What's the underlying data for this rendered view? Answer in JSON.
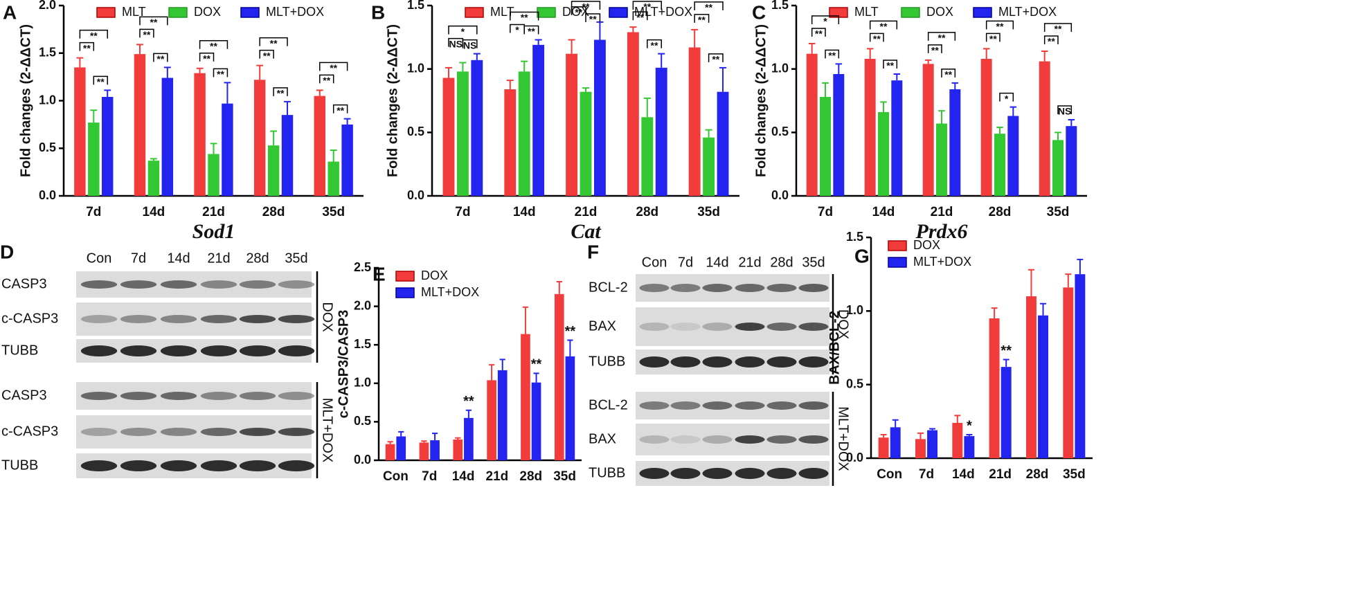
{
  "chart_data": [
    {
      "type": "bar",
      "panel": "A",
      "y_label": "Fold changes (2-ΔΔCT)",
      "x_label": "Sod1",
      "categories": [
        "7d",
        "14d",
        "21d",
        "28d",
        "35d"
      ],
      "legend": "top",
      "series": [
        {
          "name": "MLT",
          "color": "#f23c3c",
          "values": [
            1.35,
            1.49,
            1.29,
            1.22,
            1.05
          ],
          "errors": [
            0.1,
            0.1,
            0.05,
            0.15,
            0.06
          ]
        },
        {
          "name": "DOX",
          "color": "#33c833",
          "values": [
            0.77,
            0.37,
            0.44,
            0.53,
            0.36
          ],
          "errors": [
            0.13,
            0.02,
            0.11,
            0.15,
            0.12
          ]
        },
        {
          "name": "MLT+DOX",
          "color": "#2424f0",
          "values": [
            1.04,
            1.24,
            0.97,
            0.85,
            0.75
          ],
          "errors": [
            0.07,
            0.11,
            0.22,
            0.14,
            0.06
          ]
        }
      ],
      "annotations": [
        [
          "**",
          "**",
          "**"
        ],
        [
          "**",
          "**",
          "**"
        ],
        [
          "**",
          "**",
          "**"
        ],
        [
          "**",
          "**",
          "**"
        ],
        [
          "**",
          "**",
          "**"
        ]
      ],
      "ylim": [
        0,
        2
      ],
      "yticks": [
        {
          "value": 0,
          "label": "0.0"
        },
        {
          "value": 0.5,
          "label": "0.5"
        },
        {
          "value": 1,
          "label": "1.0"
        },
        {
          "value": 1.5,
          "label": "1.5"
        },
        {
          "value": 2,
          "label": "2.0"
        }
      ]
    },
    {
      "type": "bar",
      "panel": "B",
      "y_label": "Fold changes (2-ΔΔCT)",
      "x_label": "Cat",
      "categories": [
        "7d",
        "14d",
        "21d",
        "28d",
        "35d"
      ],
      "legend": "top",
      "series": [
        {
          "name": "MLT",
          "color": "#f23c3c",
          "values": [
            0.93,
            0.84,
            1.12,
            1.29,
            1.17
          ],
          "errors": [
            0.08,
            0.07,
            0.11,
            0.04,
            0.14
          ]
        },
        {
          "name": "DOX",
          "color": "#33c833",
          "values": [
            0.98,
            0.98,
            0.82,
            0.62,
            0.46
          ],
          "errors": [
            0.07,
            0.08,
            0.03,
            0.15,
            0.06
          ]
        },
        {
          "name": "MLT+DOX",
          "color": "#2424f0",
          "values": [
            1.07,
            1.19,
            1.23,
            1.01,
            0.82
          ],
          "errors": [
            0.05,
            0.04,
            0.14,
            0.11,
            0.19
          ]
        }
      ],
      "annotations": [
        [
          "NS",
          "*",
          "NS"
        ],
        [
          "*",
          "**",
          "**"
        ],
        [
          "**",
          "**",
          "**"
        ],
        [
          "**",
          "**",
          "**"
        ],
        [
          "**",
          "**",
          "**"
        ]
      ],
      "ylim": [
        0,
        1.5
      ],
      "yticks": [
        {
          "value": 0,
          "label": "0.0"
        },
        {
          "value": 0.5,
          "label": "0.5"
        },
        {
          "value": 1,
          "label": "1.0"
        },
        {
          "value": 1.5,
          "label": "1.5"
        }
      ]
    },
    {
      "type": "bar",
      "panel": "C",
      "y_label": "Fold changes (2-ΔΔCT)",
      "x_label": "Prdx6",
      "categories": [
        "7d",
        "14d",
        "21d",
        "28d",
        "35d"
      ],
      "legend": "top",
      "series": [
        {
          "name": "MLT",
          "color": "#f23c3c",
          "values": [
            1.12,
            1.08,
            1.04,
            1.08,
            1.06
          ],
          "errors": [
            0.08,
            0.08,
            0.03,
            0.08,
            0.08
          ]
        },
        {
          "name": "DOX",
          "color": "#33c833",
          "values": [
            0.78,
            0.66,
            0.57,
            0.49,
            0.44
          ],
          "errors": [
            0.11,
            0.08,
            0.1,
            0.05,
            0.06
          ]
        },
        {
          "name": "MLT+DOX",
          "color": "#2424f0",
          "values": [
            0.96,
            0.91,
            0.84,
            0.63,
            0.55
          ],
          "errors": [
            0.08,
            0.05,
            0.05,
            0.07,
            0.05
          ]
        }
      ],
      "annotations": [
        [
          "**",
          "*",
          "**"
        ],
        [
          "**",
          "**",
          "**"
        ],
        [
          "**",
          "**",
          "**"
        ],
        [
          "**",
          "**",
          "*"
        ],
        [
          "**",
          "**",
          "NS"
        ]
      ],
      "ylim": [
        0,
        1.5
      ],
      "yticks": [
        {
          "value": 0,
          "label": "0.0"
        },
        {
          "value": 0.5,
          "label": "0.5"
        },
        {
          "value": 1,
          "label": "1.0"
        },
        {
          "value": 1.5,
          "label": "1.5"
        }
      ]
    },
    {
      "type": "bar",
      "panel": "E",
      "y_label": "c-CASP3/CASP3",
      "categories": [
        "Con",
        "7d",
        "14d",
        "21d",
        "28d",
        "35d"
      ],
      "legend": "upper left",
      "series": [
        {
          "name": "DOX",
          "color": "#f23c3c",
          "values": [
            0.21,
            0.23,
            0.27,
            1.04,
            1.64,
            2.16
          ],
          "errors": [
            0.03,
            0.02,
            0.02,
            0.2,
            0.35,
            0.16
          ]
        },
        {
          "name": "MLT+DOX",
          "color": "#2424f0",
          "values": [
            0.31,
            0.26,
            0.55,
            1.17,
            1.01,
            1.35
          ],
          "errors": [
            0.06,
            0.09,
            0.1,
            0.14,
            0.12,
            0.21
          ]
        }
      ],
      "annotations": [
        null,
        null,
        "**",
        null,
        "**",
        "**"
      ],
      "ylim": [
        0,
        2.5
      ],
      "yticks": [
        {
          "value": 0,
          "label": "0.0"
        },
        {
          "value": 0.5,
          "label": "0.5"
        },
        {
          "value": 1,
          "label": "1.0"
        },
        {
          "value": 1.5,
          "label": "1.5"
        },
        {
          "value": 2,
          "label": "2.0"
        },
        {
          "value": 2.5,
          "label": "2.5"
        }
      ]
    },
    {
      "type": "bar",
      "panel": "G",
      "y_label": "BAX/BCL-2",
      "categories": [
        "Con",
        "7d",
        "14d",
        "21d",
        "28d",
        "35d"
      ],
      "legend": "upper left",
      "series": [
        {
          "name": "DOX",
          "color": "#f23c3c",
          "values": [
            0.14,
            0.13,
            0.24,
            0.95,
            1.1,
            1.16
          ],
          "errors": [
            0.02,
            0.04,
            0.05,
            0.07,
            0.18,
            0.09
          ]
        },
        {
          "name": "MLT+DOX",
          "color": "#2424f0",
          "values": [
            0.21,
            0.19,
            0.15,
            0.62,
            0.97,
            1.25
          ],
          "errors": [
            0.05,
            0.01,
            0.01,
            0.05,
            0.08,
            0.1
          ]
        }
      ],
      "annotations": [
        null,
        null,
        "*",
        "**",
        null,
        null
      ],
      "ylim": [
        0,
        1.5
      ],
      "yticks": [
        {
          "value": 0,
          "label": "0.0"
        },
        {
          "value": 0.5,
          "label": "0.5"
        },
        {
          "value": 1,
          "label": "1.0"
        },
        {
          "value": 1.5,
          "label": "1.5"
        }
      ]
    }
  ],
  "blots": [
    {
      "panel": "D",
      "lanes": [
        "Con",
        "7d",
        "14d",
        "21d",
        "28d",
        "35d"
      ],
      "groups": [
        {
          "name": "DOX",
          "rows": [
            "CASP3",
            "c-CASP3",
            "TUBB"
          ]
        },
        {
          "name": "MLT+DOX",
          "rows": [
            "CASP3",
            "c-CASP3",
            "TUBB"
          ]
        }
      ]
    },
    {
      "panel": "F",
      "lanes": [
        "Con",
        "7d",
        "14d",
        "21d",
        "28d",
        "35d"
      ],
      "groups": [
        {
          "name": "DOX",
          "rows": [
            "BCL-2",
            "BAX",
            "TUBB"
          ]
        },
        {
          "name": "MLT+DOX",
          "rows": [
            "BCL-2",
            "BAX",
            "TUBB"
          ]
        }
      ]
    }
  ]
}
